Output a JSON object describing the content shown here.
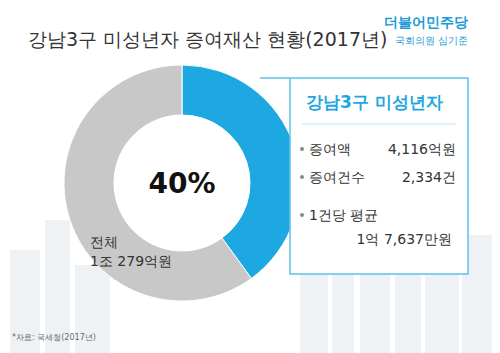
{
  "chart_data": {
    "type": "donut",
    "title": "강남3구 미성년자 증여재산 현황(2017년)",
    "categories": [
      "강남3구 미성년자",
      null
    ],
    "values": [
      40,
      60
    ],
    "colors": [
      "#1ea8e2",
      "#c8c8c8"
    ],
    "data_labels": true,
    "value_labels": [
      "40%",
      null
    ],
    "annotations": {
      "total_label": "전체",
      "total_value": "1조 279억원",
      "panel_items": [
        {
          "label": "증여액",
          "value": "4,116억원"
        },
        {
          "label": "증여건수",
          "value": "2,334건"
        },
        {
          "label": "1건당 평균",
          "value": "1억 7,637만원"
        }
      ],
      "party": "더불어민주당",
      "member": "국회의원 심기준",
      "source": "*자료: 국세청(2017년)"
    }
  }
}
